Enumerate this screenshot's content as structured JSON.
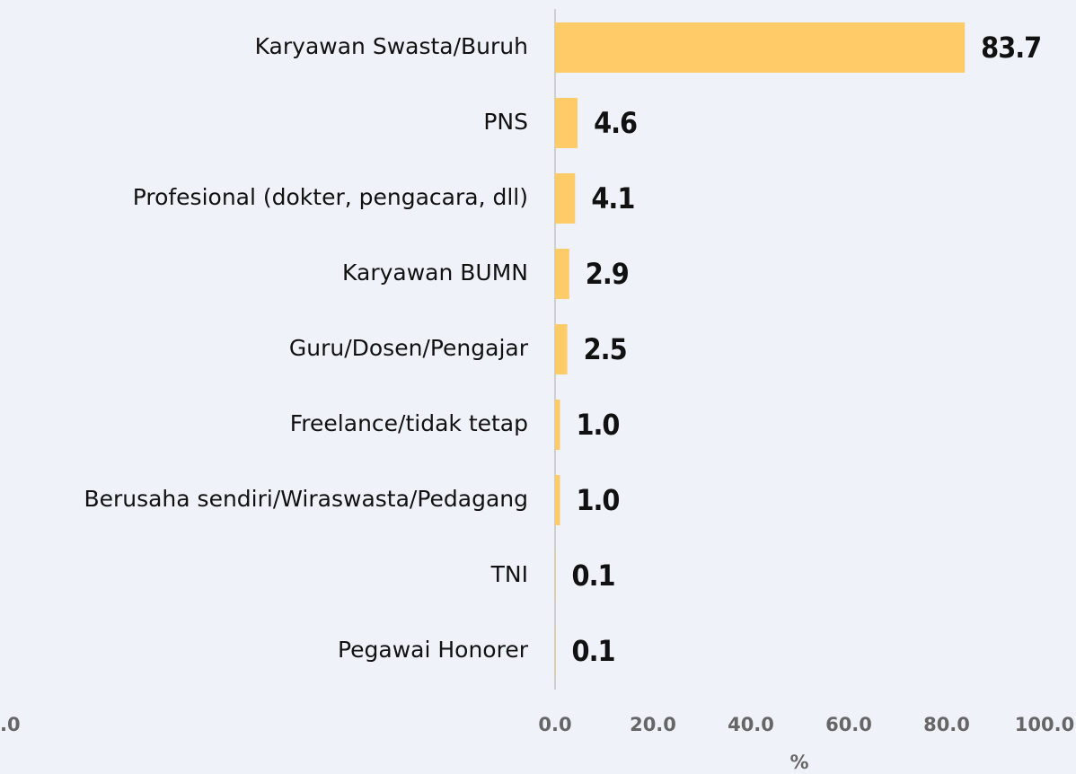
{
  "chart_data": {
    "type": "barh",
    "categories": [
      "Karyawan Swasta/Buruh",
      "PNS",
      "Profesional (dokter, pengacara, dll)",
      "Karyawan BUMN",
      "Guru/Dosen/Pengajar",
      "Freelance/tidak tetap",
      "Berusaha sendiri/Wiraswasta/Pedagang",
      "TNI",
      "Pegawai Honorer"
    ],
    "values": [
      83.7,
      4.6,
      4.1,
      2.9,
      2.5,
      1.0,
      1.0,
      0.1,
      0.1
    ],
    "value_labels": [
      "83.7",
      "4.6",
      "4.1",
      "2.9",
      "2.5",
      "1.0",
      "1.0",
      "0.1",
      "0.1"
    ],
    "color": "#ffca68",
    "xlim": [
      0,
      100
    ],
    "xticks": [
      {
        "value": 0,
        "label": "0.0"
      },
      {
        "value": 20,
        "label": "20.0"
      },
      {
        "value": 40,
        "label": "40.0"
      },
      {
        "value": 60,
        "label": "60.0"
      },
      {
        "value": 80,
        "label": "80.0"
      },
      {
        "value": 100,
        "label": "100.0"
      }
    ],
    "xlabel": "%",
    "annotations": [
      "0.0"
    ]
  }
}
